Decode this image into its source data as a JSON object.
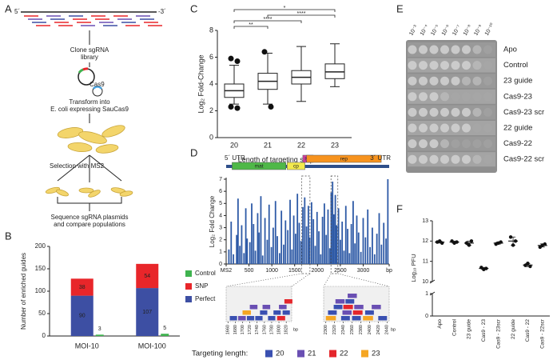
{
  "panel_labels": [
    "A",
    "B",
    "C",
    "D",
    "E",
    "F"
  ],
  "diagram": {
    "five_prime": "5´",
    "three_prime": "-3´",
    "clone": [
      "Clone sgRNA",
      "library"
    ],
    "cas9": "Cas9",
    "transform": [
      "Transform into",
      "E. coli expressing SauCas9"
    ],
    "selection": "Selection with MS2",
    "sequence": [
      "Sequence sgRNA plasmids",
      "and compare populations"
    ]
  },
  "chart_data": [
    {
      "type": "stacked_bar",
      "y_label": "Number of enriched guides",
      "categories": [
        "MOI-10",
        "MOI-100"
      ],
      "series": [
        {
          "name": "Perfect",
          "color": "#3d4fa3",
          "values": [
            90,
            107
          ]
        },
        {
          "name": "SNP",
          "color": "#e8262a",
          "values": [
            38,
            54
          ]
        },
        {
          "name": "Control",
          "color": "#3fb34f",
          "values": [
            3,
            5
          ],
          "stacked": false
        }
      ],
      "ylim": [
        0,
        200
      ],
      "yticks": [
        0,
        50,
        100,
        150,
        200
      ]
    },
    {
      "type": "box",
      "y_label": "Log₂ Fold-Change",
      "x_label": "Length of targeting sequence",
      "categories": [
        "20",
        "21",
        "22",
        "23"
      ],
      "boxes": [
        {
          "min": 2.5,
          "q1": 3.0,
          "median": 3.5,
          "q3": 4.0,
          "max": 5.4,
          "outliers": [
            5.9,
            5.7,
            2.3,
            2.2
          ]
        },
        {
          "min": 2.5,
          "q1": 3.6,
          "median": 4.2,
          "q3": 4.8,
          "max": 6.3,
          "outliers": [
            6.4,
            2.3
          ]
        },
        {
          "min": 2.7,
          "q1": 4.0,
          "median": 4.5,
          "q3": 5.0,
          "max": 6.8,
          "outliers": []
        },
        {
          "min": 3.8,
          "q1": 4.4,
          "median": 4.9,
          "q3": 5.5,
          "max": 7.0,
          "outliers": []
        }
      ],
      "significance": [
        {
          "text": "**",
          "from": "20",
          "to": "21"
        },
        {
          "text": "****",
          "from": "20",
          "to": "22"
        },
        {
          "text": "****",
          "from": "21",
          "to": "23"
        },
        {
          "text": "*",
          "from": "20",
          "to": "23"
        }
      ],
      "ylim": [
        0,
        8
      ],
      "yticks": [
        0,
        2,
        4,
        6,
        8
      ]
    },
    {
      "type": "genome_bar",
      "y_label": "Log₂ Fold Change",
      "utr_labels": [
        "5´ UTR",
        "3´ UTR"
      ],
      "genes": [
        {
          "name": "mat",
          "start": 130,
          "end": 1308,
          "color": "#4fb848"
        },
        {
          "name": "cp",
          "start": 1335,
          "end": 1724,
          "color": "#f3ea4c"
        },
        {
          "name": "lys",
          "start": 1678,
          "end": 1905,
          "color": "#d23f9f"
        },
        {
          "name": "rep",
          "start": 1761,
          "end": 3395,
          "color": "#f7931e"
        }
      ],
      "color": "#2e5aa6",
      "x": [
        60,
        110,
        160,
        230,
        260,
        300,
        340,
        390,
        430,
        460,
        520,
        560,
        600,
        640,
        690,
        720,
        760,
        800,
        850,
        900,
        940,
        990,
        1030,
        1080,
        1120,
        1170,
        1210,
        1260,
        1300,
        1350,
        1400,
        1440,
        1480,
        1520,
        1560,
        1600,
        1640,
        1680,
        1720,
        1760,
        1800,
        1830,
        1870,
        1910,
        1950,
        1990,
        2030,
        2070,
        2110,
        2150,
        2190,
        2230,
        2270,
        2300,
        2330,
        2360,
        2390,
        2420,
        2460,
        2500,
        2540,
        2580,
        2620,
        2660,
        2700,
        2740,
        2780,
        2820,
        2860,
        2900,
        2950,
        3000,
        3050,
        3100,
        3150,
        3200,
        3250,
        3300,
        3350,
        3400,
        3450,
        3500,
        3540
      ],
      "values": [
        1.2,
        3.5,
        0.8,
        2.4,
        5.4,
        1.5,
        3.2,
        0.9,
        4.6,
        2.1,
        1.8,
        5.0,
        3.3,
        1.1,
        4.2,
        2.6,
        5.6,
        0.7,
        3.8,
        2.0,
        4.9,
        1.4,
        3.0,
        5.2,
        2.3,
        0.9,
        4.4,
        1.6,
        3.6,
        2.8,
        5.3,
        1.2,
        4.0,
        2.5,
        5.8,
        3.4,
        1.9,
        4.7,
        5.5,
        3.1,
        4.8,
        2.2,
        5.1,
        3.7,
        1.5,
        4.3,
        2.7,
        0.8,
        3.9,
        5.0,
        2.4,
        4.5,
        1.3,
        5.9,
        6.8,
        4.1,
        5.7,
        3.2,
        4.6,
        2.0,
        3.5,
        1.1,
        4.8,
        2.9,
        0.9,
        3.3,
        5.2,
        1.7,
        4.0,
        2.6,
        1.0,
        3.8,
        2.2,
        4.5,
        1.4,
        3.0,
        0.8,
        2.5,
        4.2,
        1.6,
        3.4,
        2.1,
        7.0
      ],
      "xlim": [
        0,
        3569
      ],
      "xticks": [
        {
          "value": 0,
          "label": "MS2"
        },
        500,
        1000,
        1500,
        2000,
        2500,
        3000,
        {
          "value": 3569,
          "label": "bp"
        }
      ],
      "ylim": [
        0,
        7
      ],
      "yticks": [
        0,
        1,
        2,
        3,
        4,
        5,
        6,
        7
      ],
      "insets": [
        {
          "xlim": [
            1655,
            1835
          ],
          "xticks": [
            1660,
            1680,
            1700,
            1720,
            1740,
            1760,
            1780,
            1800,
            1820
          ],
          "unit": "bp",
          "guides": [
            {
              "start": 1665,
              "length": 20
            },
            {
              "start": 1688,
              "length": 21
            },
            {
              "start": 1700,
              "length": 23
            },
            {
              "start": 1712,
              "length": 20
            },
            {
              "start": 1720,
              "length": 21
            },
            {
              "start": 1735,
              "length": 20
            },
            {
              "start": 1748,
              "length": 20
            },
            {
              "start": 1755,
              "length": 21
            },
            {
              "start": 1770,
              "length": 20
            },
            {
              "start": 1785,
              "length": 20
            },
            {
              "start": 1795,
              "length": 22
            },
            {
              "start": 1800,
              "length": 21
            },
            {
              "start": 1810,
              "length": 20
            },
            {
              "start": 1815,
              "length": 22
            }
          ]
        },
        {
          "xlim": [
            2295,
            2445
          ],
          "xticks": [
            2300,
            2320,
            2340,
            2360,
            2380,
            2400,
            2420,
            2440
          ],
          "unit": "bp",
          "guides": [
            {
              "start": 2300,
              "length": 23
            },
            {
              "start": 2305,
              "length": 20
            },
            {
              "start": 2318,
              "length": 20
            },
            {
              "start": 2322,
              "length": 21
            },
            {
              "start": 2335,
              "length": 20
            },
            {
              "start": 2338,
              "length": 21
            },
            {
              "start": 2340,
              "length": 22
            },
            {
              "start": 2345,
              "length": 20
            },
            {
              "start": 2350,
              "length": 21
            },
            {
              "start": 2360,
              "length": 20
            },
            {
              "start": 2362,
              "length": 22
            },
            {
              "start": 2365,
              "length": 21
            },
            {
              "start": 2385,
              "length": 23
            },
            {
              "start": 2390,
              "length": 20
            },
            {
              "start": 2405,
              "length": 21
            },
            {
              "start": 2420,
              "length": 20
            }
          ]
        }
      ],
      "targeting_legend": {
        "title": "Targeting length:",
        "items": [
          {
            "length": 20,
            "color": "#3a50b1"
          },
          {
            "length": 21,
            "color": "#6a4fb3"
          },
          {
            "length": 22,
            "color": "#e4262c"
          },
          {
            "length": 23,
            "color": "#f5a623"
          }
        ]
      }
    },
    {
      "type": "dot",
      "y_label": "Log₁₀ PFU",
      "categories": [
        "Apo",
        "Control",
        "23 guide",
        "Cas9 - 23",
        "Cas9 - 23scr",
        "22 guide",
        "Cas9 - 22",
        "Cas9 - 22scr"
      ],
      "values": [
        [
          11.95,
          12.0,
          11.9
        ],
        [
          12.0,
          11.9,
          11.95
        ],
        [
          11.9,
          11.8,
          12.0
        ],
        [
          10.7,
          10.6,
          10.65
        ],
        [
          11.85,
          11.9,
          11.95
        ],
        [
          12.2,
          11.8,
          12.0
        ],
        [
          10.8,
          10.9,
          10.75
        ],
        [
          11.7,
          11.8,
          11.85
        ]
      ],
      "ylim": [
        0,
        13
      ],
      "axis_break": [
        1,
        10
      ],
      "yticks": [
        0,
        1,
        10,
        11,
        12,
        13
      ]
    }
  ],
  "plate": {
    "dilutions": [
      "10⁻³",
      "10⁻⁴",
      "10⁻⁵",
      "10⁻⁶",
      "10⁻⁷",
      "10⁻⁸",
      "10⁻⁹",
      "10⁻¹⁰"
    ],
    "rows": [
      "Apo",
      "Control",
      "23 guide",
      "Cas9-23",
      "Cas9-23 scr",
      "22 guide",
      "Cas9-22",
      "Cas9-22 scr"
    ]
  }
}
